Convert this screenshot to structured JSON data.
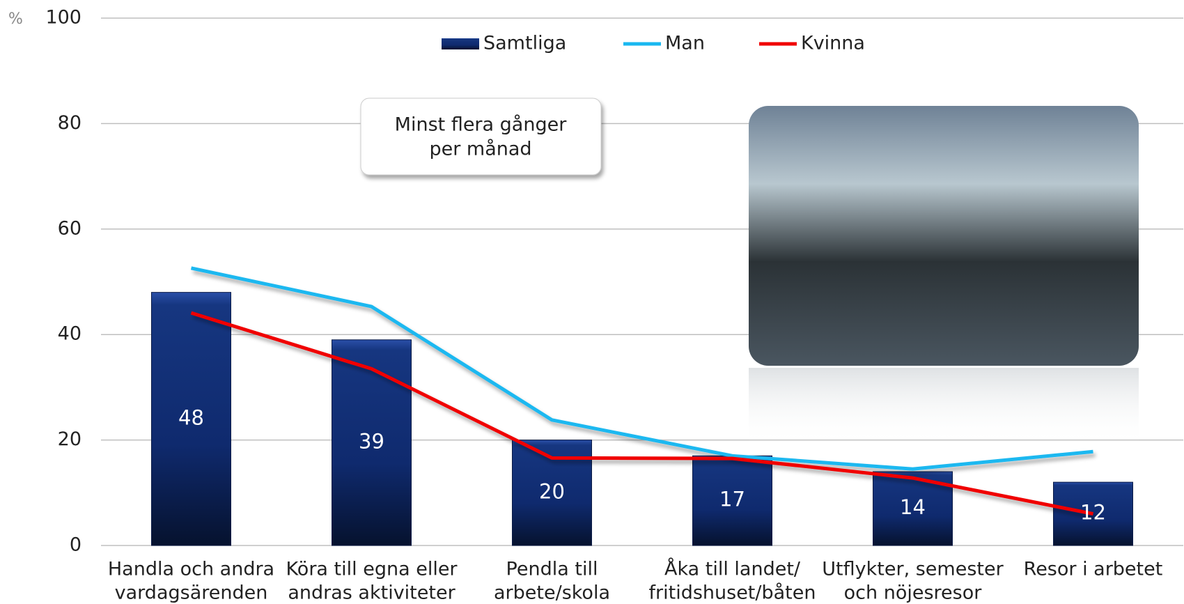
{
  "chart_data": {
    "type": "bar",
    "unit": "%",
    "annotation": [
      "Minst flera gånger",
      "per månad"
    ],
    "categories": [
      [
        "Handla och andra",
        "vardagsärenden"
      ],
      [
        "Köra till egna eller",
        "andras aktiviteter"
      ],
      [
        "Pendla till",
        "arbete/skola"
      ],
      [
        "Åka till landet/",
        "fritidshuset/båten"
      ],
      [
        "Utflykter, semester",
        "och nöjesresor"
      ],
      [
        "Resor i arbetet"
      ]
    ],
    "series": [
      {
        "name": "Samtliga",
        "type": "bar",
        "color": "#0f2a6e",
        "values": [
          48,
          39,
          20,
          17,
          14,
          12
        ]
      },
      {
        "name": "Man",
        "type": "line",
        "color": "#1ab8f0",
        "values": [
          52.6,
          45.3,
          23.8,
          17.0,
          14.5,
          17.8
        ]
      },
      {
        "name": "Kvinna",
        "type": "line",
        "color": "#f00000",
        "values": [
          44.1,
          33.5,
          16.6,
          16.5,
          12.8,
          6.0
        ]
      }
    ],
    "ylim": [
      0,
      100
    ],
    "yticks": [
      0,
      20,
      40,
      60,
      80,
      100
    ],
    "grid": true
  }
}
